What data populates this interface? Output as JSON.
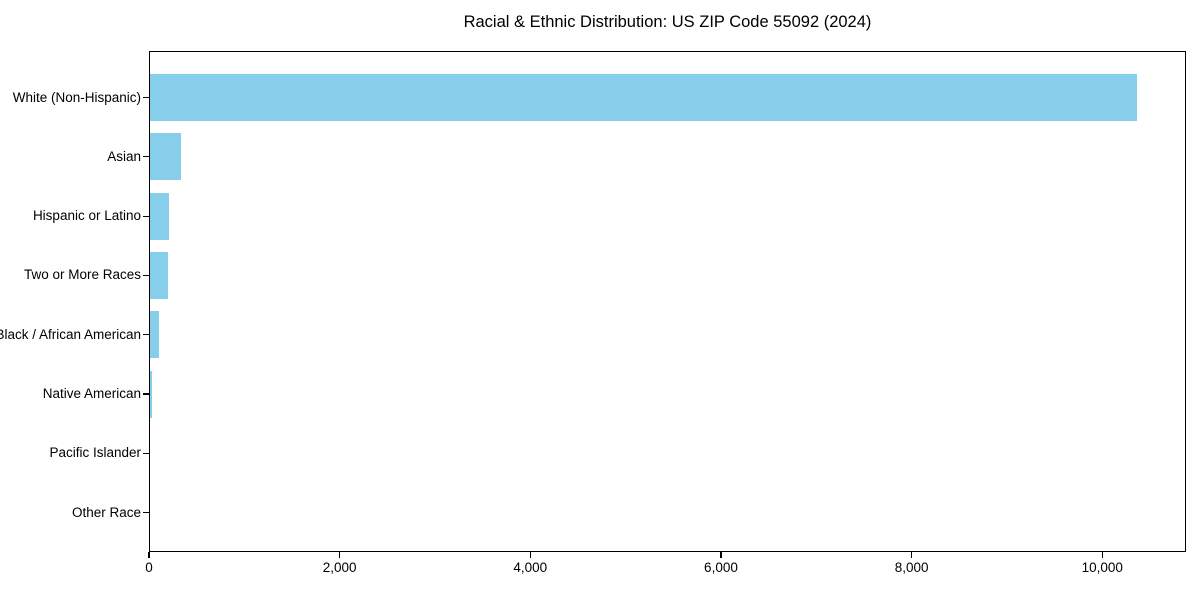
{
  "title": "Racial & Ethnic Distribution: US ZIP Code 55092 (2024)",
  "chart_data": {
    "type": "bar",
    "orientation": "horizontal",
    "title": "Racial & Ethnic Distribution: US ZIP Code 55092 (2024)",
    "categories": [
      "White (Non-Hispanic)",
      "Asian",
      "Hispanic or Latino",
      "Two or More Races",
      "Black / African American",
      "Native American",
      "Pacific Islander",
      "Other Race"
    ],
    "values": [
      10350,
      320,
      200,
      190,
      90,
      20,
      0,
      0
    ],
    "xlabel": "",
    "ylabel": "",
    "xlim": [
      0,
      10868
    ],
    "x_ticks": [
      0,
      2000,
      4000,
      6000,
      8000,
      10000
    ],
    "x_tick_labels": [
      "0",
      "2,000",
      "4,000",
      "6,000",
      "8,000",
      "10,000"
    ],
    "bar_color": "#87CEEB",
    "axis_color": "#000000",
    "grid": false,
    "legend": null
  }
}
